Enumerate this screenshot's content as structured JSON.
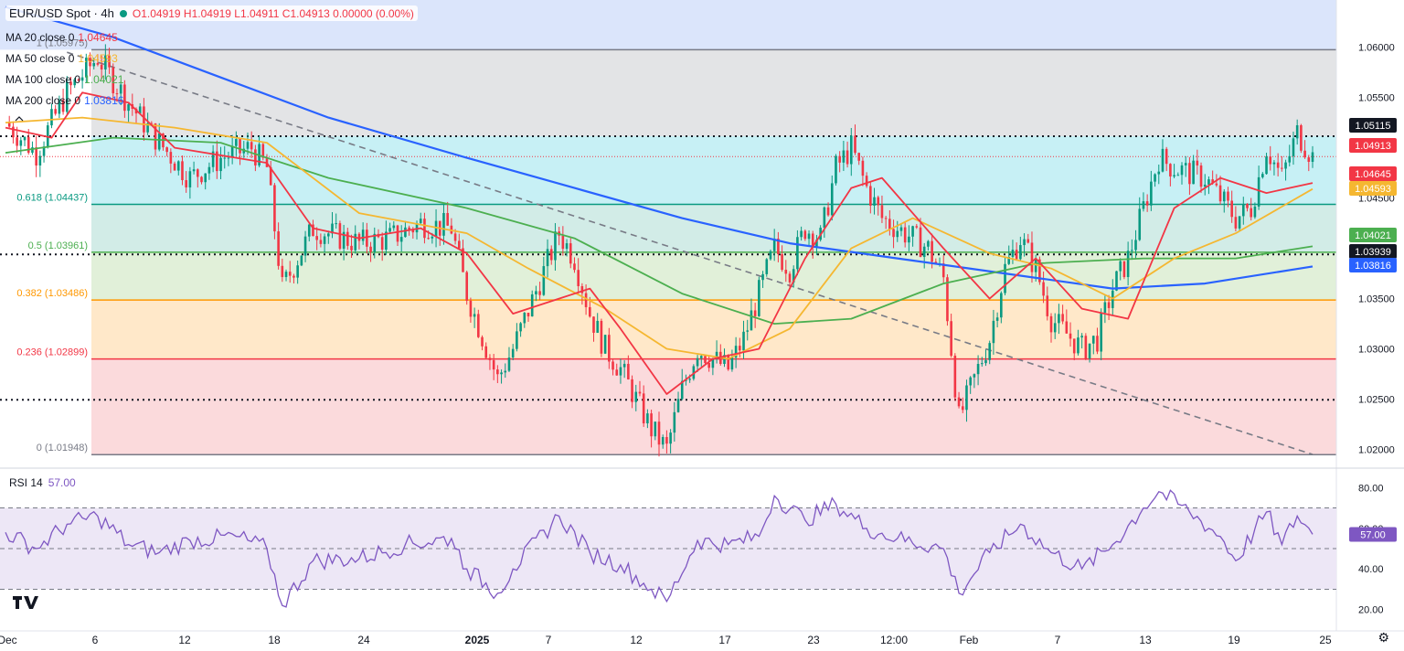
{
  "header": {
    "symbol": "EUR/USD Spot · 4h",
    "ohlc": "O1.04919 H1.04919 L1.04911 C1.04913 0.00000 (0.00%)"
  },
  "moving_averages": [
    {
      "label": "MA 20 close 0",
      "value": "1.04645",
      "color": "#f23645"
    },
    {
      "label": "MA 50 close 0",
      "value": "1.04593",
      "color": "#f5b731"
    },
    {
      "label": "MA 100 close 0",
      "value": "1.04021",
      "color": "#4caf50"
    },
    {
      "label": "MA 200 close 0",
      "value": "1.03816",
      "color": "#2962ff"
    }
  ],
  "rsi": {
    "label": "RSI 14",
    "value": "57.00"
  },
  "colors": {
    "up": "#089981",
    "down": "#f23645",
    "ma20": "#f23645",
    "ma50": "#f5b731",
    "ma100": "#4caf50",
    "ma200": "#2962ff",
    "rsi": "#7e57c2",
    "dashed": "#787b86"
  },
  "chart_data": {
    "type": "line",
    "title": "EUR/USD Spot · 4h",
    "x_ticks": [
      "Dec",
      "6",
      "12",
      "18",
      "24",
      "2025",
      "7",
      "12",
      "17",
      "23",
      "12:00",
      "Feb",
      "7",
      "13",
      "19",
      "25"
    ],
    "y_ticks": [
      "1.06000",
      "1.05500",
      "1.05000",
      "1.04500",
      "1.04000",
      "1.03500",
      "1.03000",
      "1.02500",
      "1.02000"
    ],
    "ylim": [
      1.0185,
      1.0647
    ],
    "fibonacci": [
      {
        "label": "1 (1.05975)",
        "price": 1.05975,
        "color": "#787b86"
      },
      {
        "label": "0.618 (1.04437)",
        "price": 1.04437,
        "color": "#089981"
      },
      {
        "label": "0.5 (1.03961)",
        "price": 1.03961,
        "color": "#4caf50"
      },
      {
        "label": "0.382 (1.03486)",
        "price": 1.03486,
        "color": "#ff9800"
      },
      {
        "label": "0.236 (1.02899)",
        "price": 1.02899,
        "color": "#f23645"
      },
      {
        "label": "0 (1.01948)",
        "price": 1.01948,
        "color": "#787b86"
      }
    ],
    "horizontal_levels": [
      {
        "label": "1.05115",
        "price": 1.05115,
        "style": "dotted"
      },
      {
        "label": "1.03939",
        "price": 1.03939,
        "style": "dotted"
      },
      {
        "label": "1.02494",
        "price": 1.02494,
        "style": "dotted"
      }
    ],
    "price_tags": [
      {
        "label": "1.05115",
        "price": 1.05115,
        "color": "#131722"
      },
      {
        "label": "1.04913",
        "price": 1.04913,
        "color": "#f23645"
      },
      {
        "label": "1.04645",
        "price": 1.04645,
        "color": "#f23645"
      },
      {
        "label": "1.04593",
        "price": 1.04593,
        "color": "#f5b731"
      },
      {
        "label": "1.04021",
        "price": 1.04021,
        "color": "#4caf50"
      },
      {
        "label": "1.03939",
        "price": 1.03939,
        "color": "#131722"
      },
      {
        "label": "1.03816",
        "price": 1.03816,
        "color": "#2962ff"
      }
    ],
    "trendline": {
      "from": {
        "x": "Dec 5",
        "y": 1.0595
      },
      "to": {
        "x": "Feb 24",
        "y": 1.0195
      }
    },
    "close_series": [
      {
        "x": "Dec 1",
        "y": 1.0525
      },
      {
        "x": "Dec 3",
        "y": 1.0495
      },
      {
        "x": "Dec 5",
        "y": 1.0555
      },
      {
        "x": "Dec 7",
        "y": 1.059
      },
      {
        "x": "Dec 9",
        "y": 1.0545
      },
      {
        "x": "Dec 11",
        "y": 1.0505
      },
      {
        "x": "Dec 13",
        "y": 1.047
      },
      {
        "x": "Dec 15",
        "y": 1.049
      },
      {
        "x": "Dec 17",
        "y": 1.05
      },
      {
        "x": "Dec 18",
        "y": 1.048
      },
      {
        "x": "Dec 19",
        "y": 1.036
      },
      {
        "x": "Dec 21",
        "y": 1.042
      },
      {
        "x": "Dec 24",
        "y": 1.0405
      },
      {
        "x": "Dec 26",
        "y": 1.041
      },
      {
        "x": "Dec 28",
        "y": 1.0425
      },
      {
        "x": "Dec 30",
        "y": 1.042
      },
      {
        "x": "Dec 31",
        "y": 1.0355
      },
      {
        "x": "Jan 2",
        "y": 1.027
      },
      {
        "x": "Jan 3",
        "y": 1.03
      },
      {
        "x": "Jan 6",
        "y": 1.0415
      },
      {
        "x": "Jan 7",
        "y": 1.039
      },
      {
        "x": "Jan 8",
        "y": 1.0335
      },
      {
        "x": "Jan 9",
        "y": 1.03
      },
      {
        "x": "Jan 10",
        "y": 1.028
      },
      {
        "x": "Jan 12",
        "y": 1.022
      },
      {
        "x": "Jan 13",
        "y": 1.02
      },
      {
        "x": "Jan 14",
        "y": 1.026
      },
      {
        "x": "Jan 15",
        "y": 1.03
      },
      {
        "x": "Jan 17",
        "y": 1.028
      },
      {
        "x": "Jan 18",
        "y": 1.031
      },
      {
        "x": "Jan 20",
        "y": 1.04
      },
      {
        "x": "Jan 21",
        "y": 1.038
      },
      {
        "x": "Jan 22",
        "y": 1.042
      },
      {
        "x": "Jan 23",
        "y": 1.041
      },
      {
        "x": "Jan 24",
        "y": 1.048
      },
      {
        "x": "Jan 25",
        "y": 1.05
      },
      {
        "x": "Jan 26",
        "y": 1.046
      },
      {
        "x": "Jan 27",
        "y": 1.043
      },
      {
        "x": "Jan 28",
        "y": 1.042
      },
      {
        "x": "Jan 30",
        "y": 1.04
      },
      {
        "x": "Jan 31",
        "y": 1.037
      },
      {
        "x": "Feb 1",
        "y": 1.023
      },
      {
        "x": "Feb 3",
        "y": 1.031
      },
      {
        "x": "Feb 4",
        "y": 1.038
      },
      {
        "x": "Feb 5",
        "y": 1.041
      },
      {
        "x": "Feb 6",
        "y": 1.038
      },
      {
        "x": "Feb 7",
        "y": 1.033
      },
      {
        "x": "Feb 9",
        "y": 1.03
      },
      {
        "x": "Feb 10",
        "y": 1.031
      },
      {
        "x": "Feb 11",
        "y": 1.036
      },
      {
        "x": "Feb 12",
        "y": 1.039
      },
      {
        "x": "Feb 13",
        "y": 1.044
      },
      {
        "x": "Feb 14",
        "y": 1.049
      },
      {
        "x": "Feb 15",
        "y": 1.048
      },
      {
        "x": "Feb 17",
        "y": 1.047
      },
      {
        "x": "Feb 18",
        "y": 1.045
      },
      {
        "x": "Feb 19",
        "y": 1.043
      },
      {
        "x": "Feb 20",
        "y": 1.044
      },
      {
        "x": "Feb 21",
        "y": 1.05
      },
      {
        "x": "Feb 22",
        "y": 1.047
      },
      {
        "x": "Feb 23",
        "y": 1.0515
      },
      {
        "x": "Feb 24",
        "y": 1.0491
      }
    ],
    "ma_series": {
      "ma20": [
        {
          "x": "Dec 1",
          "y": 1.052
        },
        {
          "x": "Dec 4",
          "y": 1.051
        },
        {
          "x": "Dec 6",
          "y": 1.0555
        },
        {
          "x": "Dec 9",
          "y": 1.0545
        },
        {
          "x": "Dec 12",
          "y": 1.05
        },
        {
          "x": "Dec 16",
          "y": 1.049
        },
        {
          "x": "Dec 18",
          "y": 1.0485
        },
        {
          "x": "Dec 21",
          "y": 1.042
        },
        {
          "x": "Dec 24",
          "y": 1.041
        },
        {
          "x": "Dec 28",
          "y": 1.042
        },
        {
          "x": "Dec 31",
          "y": 1.0395
        },
        {
          "x": "Jan 3",
          "y": 1.0335
        },
        {
          "x": "Jan 6",
          "y": 1.035
        },
        {
          "x": "Jan 8",
          "y": 1.036
        },
        {
          "x": "Jan 10",
          "y": 1.032
        },
        {
          "x": "Jan 13",
          "y": 1.0255
        },
        {
          "x": "Jan 16",
          "y": 1.029
        },
        {
          "x": "Jan 19",
          "y": 1.03
        },
        {
          "x": "Jan 22",
          "y": 1.039
        },
        {
          "x": "Jan 25",
          "y": 1.046
        },
        {
          "x": "Jan 27",
          "y": 1.047
        },
        {
          "x": "Jan 31",
          "y": 1.04
        },
        {
          "x": "Feb 3",
          "y": 1.035
        },
        {
          "x": "Feb 6",
          "y": 1.039
        },
        {
          "x": "Feb 9",
          "y": 1.034
        },
        {
          "x": "Feb 12",
          "y": 1.033
        },
        {
          "x": "Feb 15",
          "y": 1.044
        },
        {
          "x": "Feb 18",
          "y": 1.047
        },
        {
          "x": "Feb 21",
          "y": 1.0455
        },
        {
          "x": "Feb 24",
          "y": 1.0465
        }
      ],
      "ma50": [
        {
          "x": "Dec 1",
          "y": 1.0525
        },
        {
          "x": "Dec 6",
          "y": 1.053
        },
        {
          "x": "Dec 12",
          "y": 1.052
        },
        {
          "x": "Dec 18",
          "y": 1.0505
        },
        {
          "x": "Dec 24",
          "y": 1.0435
        },
        {
          "x": "Dec 31",
          "y": 1.0415
        },
        {
          "x": "Jan 4",
          "y": 1.038
        },
        {
          "x": "Jan 9",
          "y": 1.034
        },
        {
          "x": "Jan 13",
          "y": 1.03
        },
        {
          "x": "Jan 17",
          "y": 1.029
        },
        {
          "x": "Jan 21",
          "y": 1.032
        },
        {
          "x": "Jan 25",
          "y": 1.04
        },
        {
          "x": "Jan 29",
          "y": 1.043
        },
        {
          "x": "Feb 3",
          "y": 1.0395
        },
        {
          "x": "Feb 7",
          "y": 1.038
        },
        {
          "x": "Feb 11",
          "y": 1.035
        },
        {
          "x": "Feb 15",
          "y": 1.039
        },
        {
          "x": "Feb 19",
          "y": 1.0415
        },
        {
          "x": "Feb 24",
          "y": 1.0459
        }
      ],
      "ma100": [
        {
          "x": "Dec 1",
          "y": 1.0495
        },
        {
          "x": "Dec 8",
          "y": 1.051
        },
        {
          "x": "Dec 15",
          "y": 1.0505
        },
        {
          "x": "Dec 22",
          "y": 1.047
        },
        {
          "x": "Dec 31",
          "y": 1.044
        },
        {
          "x": "Jan 7",
          "y": 1.041
        },
        {
          "x": "Jan 14",
          "y": 1.0355
        },
        {
          "x": "Jan 20",
          "y": 1.0325
        },
        {
          "x": "Jan 25",
          "y": 1.033
        },
        {
          "x": "Jan 31",
          "y": 1.0365
        },
        {
          "x": "Feb 6",
          "y": 1.0385
        },
        {
          "x": "Feb 13",
          "y": 1.039
        },
        {
          "x": "Feb 19",
          "y": 1.039
        },
        {
          "x": "Feb 24",
          "y": 1.0402
        }
      ],
      "ma200": [
        {
          "x": "Dec 1",
          "y": 1.064
        },
        {
          "x": "Dec 8",
          "y": 1.061
        },
        {
          "x": "Dec 15",
          "y": 1.057
        },
        {
          "x": "Dec 22",
          "y": 1.053
        },
        {
          "x": "Dec 31",
          "y": 1.049
        },
        {
          "x": "Jan 7",
          "y": 1.046
        },
        {
          "x": "Jan 14",
          "y": 1.043
        },
        {
          "x": "Jan 21",
          "y": 1.0405
        },
        {
          "x": "Jan 28",
          "y": 1.039
        },
        {
          "x": "Feb 4",
          "y": 1.0375
        },
        {
          "x": "Feb 11",
          "y": 1.036
        },
        {
          "x": "Feb 17",
          "y": 1.0365
        },
        {
          "x": "Feb 24",
          "y": 1.0382
        }
      ]
    },
    "rsi_series": [
      {
        "x": "Dec 1",
        "y": 58
      },
      {
        "x": "Dec 3",
        "y": 50
      },
      {
        "x": "Dec 5",
        "y": 62
      },
      {
        "x": "Dec 7",
        "y": 66
      },
      {
        "x": "Dec 9",
        "y": 52
      },
      {
        "x": "Dec 11",
        "y": 48
      },
      {
        "x": "Dec 13",
        "y": 54
      },
      {
        "x": "Dec 16",
        "y": 56
      },
      {
        "x": "Dec 18",
        "y": 50
      },
      {
        "x": "Dec 19",
        "y": 22
      },
      {
        "x": "Dec 21",
        "y": 44
      },
      {
        "x": "Dec 24",
        "y": 45
      },
      {
        "x": "Dec 27",
        "y": 52
      },
      {
        "x": "Dec 30",
        "y": 55
      },
      {
        "x": "Dec 31",
        "y": 40
      },
      {
        "x": "Jan 2",
        "y": 28
      },
      {
        "x": "Jan 3",
        "y": 40
      },
      {
        "x": "Jan 6",
        "y": 66
      },
      {
        "x": "Jan 8",
        "y": 48
      },
      {
        "x": "Jan 10",
        "y": 42
      },
      {
        "x": "Jan 12",
        "y": 30
      },
      {
        "x": "Jan 13",
        "y": 24
      },
      {
        "x": "Jan 15",
        "y": 54
      },
      {
        "x": "Jan 17",
        "y": 52
      },
      {
        "x": "Jan 19",
        "y": 56
      },
      {
        "x": "Jan 20",
        "y": 76
      },
      {
        "x": "Jan 22",
        "y": 64
      },
      {
        "x": "Jan 24",
        "y": 72
      },
      {
        "x": "Jan 26",
        "y": 60
      },
      {
        "x": "Jan 28",
        "y": 55
      },
      {
        "x": "Jan 31",
        "y": 50
      },
      {
        "x": "Feb 1",
        "y": 28
      },
      {
        "x": "Feb 3",
        "y": 48
      },
      {
        "x": "Feb 5",
        "y": 62
      },
      {
        "x": "Feb 7",
        "y": 48
      },
      {
        "x": "Feb 9",
        "y": 40
      },
      {
        "x": "Feb 11",
        "y": 52
      },
      {
        "x": "Feb 13",
        "y": 70
      },
      {
        "x": "Feb 14",
        "y": 78
      },
      {
        "x": "Feb 16",
        "y": 68
      },
      {
        "x": "Feb 18",
        "y": 56
      },
      {
        "x": "Feb 19",
        "y": 44
      },
      {
        "x": "Feb 21",
        "y": 68
      },
      {
        "x": "Feb 22",
        "y": 52
      },
      {
        "x": "Feb 23",
        "y": 66
      },
      {
        "x": "Feb 24",
        "y": 57
      }
    ],
    "rsi_levels": [
      70,
      50,
      30
    ],
    "rsi_ticks": [
      "80.00",
      "60.00",
      "40.00",
      "20.00"
    ],
    "rsi_ylim": [
      14,
      86
    ]
  }
}
